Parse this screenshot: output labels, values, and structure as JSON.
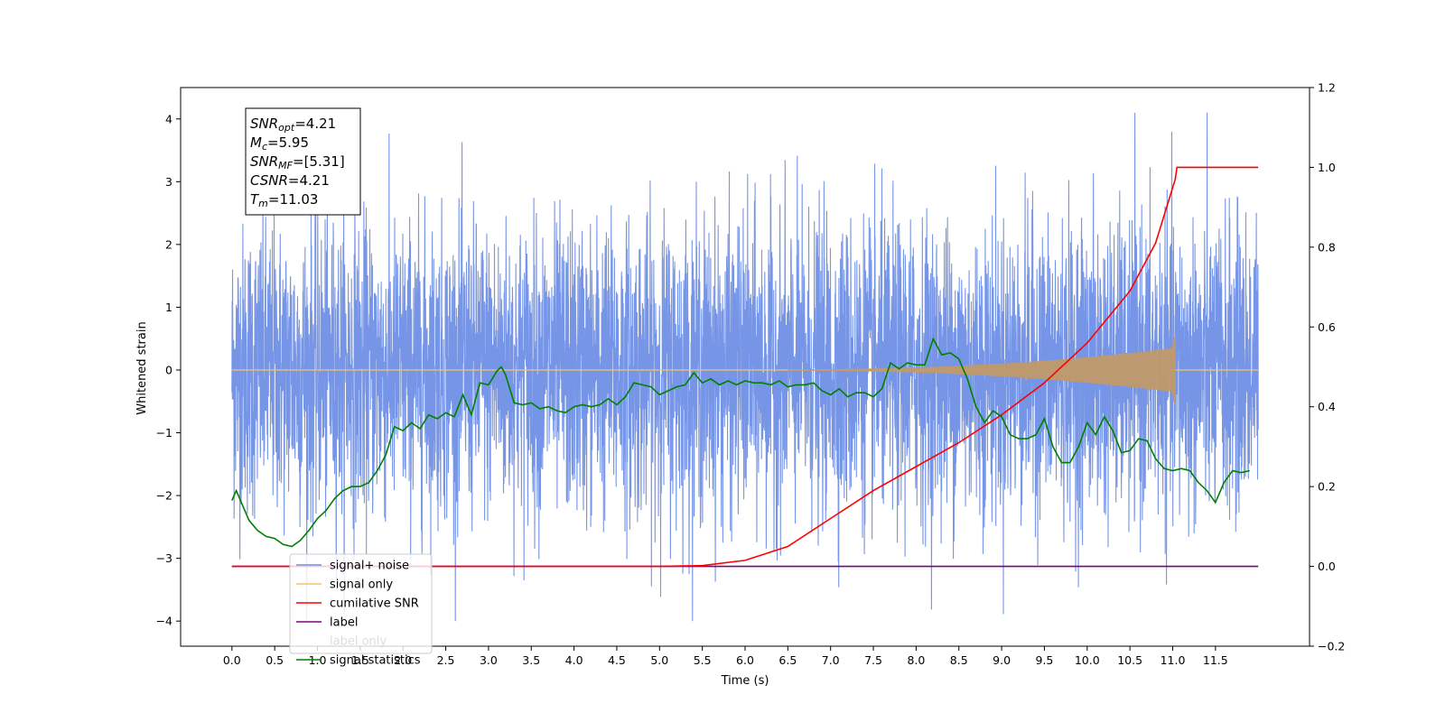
{
  "chart_data": {
    "type": "line",
    "xlabel": "Time (s)",
    "ylabel": "Whitened strain",
    "x_ticks": [
      "0.0",
      "0.5",
      "1.0",
      "1.5",
      "2.0",
      "2.5",
      "3.0",
      "3.5",
      "4.0",
      "4.5",
      "5.0",
      "5.5",
      "6.0",
      "6.5",
      "7.0",
      "7.5",
      "8.0",
      "8.5",
      "9.0",
      "9.5",
      "10.0",
      "10.5",
      "11.0",
      "11.5"
    ],
    "y_left_ticks": [
      "4",
      "3",
      "2",
      "1",
      "0",
      "−1",
      "−2",
      "−3",
      "−4"
    ],
    "y_right_ticks": [
      "1.2",
      "1.0",
      "0.8",
      "0.6",
      "0.4",
      "0.2",
      "0.0",
      "−0.2"
    ],
    "xlim": [
      -0.6,
      12.6
    ],
    "ylim_left": [
      -4.4,
      4.5
    ],
    "ylim_right": [
      -0.2,
      1.2
    ],
    "grid": false,
    "legend_position": "lower-left",
    "annotation": {
      "lines": [
        {
          "label": "SNR",
          "sub": "opt",
          "value": "=4.21"
        },
        {
          "label": "M",
          "sub": "c",
          "value": "=5.95"
        },
        {
          "label": "SNR",
          "sub": "MF",
          "value": "=[5.31]"
        },
        {
          "label": "CSNR",
          "sub": "",
          "value": "=4.21"
        },
        {
          "label": "T",
          "sub": "m",
          "value": "=11.03"
        }
      ]
    },
    "series": [
      {
        "name": "signal+ noise",
        "color": "#6f8fe6",
        "axis": "left",
        "description_stats": {
          "x_start": 0.0,
          "x_end": 12.0,
          "typical_range": [
            -2.4,
            2.4
          ],
          "max": 4.1,
          "min": -4.0
        }
      },
      {
        "name": "signal only",
        "color": "#f5c26b",
        "axis": "left",
        "chirp": {
          "start": 6.5,
          "merger": 11.03,
          "peak_amplitude": 0.55,
          "end_value": 0.0
        }
      },
      {
        "name": "cumilative SNR",
        "color": "#ff0000",
        "axis": "right",
        "x": [
          0.0,
          5.0,
          5.5,
          6.0,
          6.5,
          7.0,
          7.5,
          8.0,
          8.5,
          9.0,
          9.5,
          10.0,
          10.5,
          10.8,
          11.03,
          11.05,
          12.0
        ],
        "y": [
          0.0,
          0.0,
          0.002,
          0.015,
          0.05,
          0.12,
          0.19,
          0.25,
          0.31,
          0.38,
          0.46,
          0.56,
          0.69,
          0.81,
          0.97,
          1.0,
          1.0
        ]
      },
      {
        "name": "label",
        "color": "#800080",
        "axis": "right",
        "x": [
          0.0,
          12.0
        ],
        "y": [
          0.0,
          0.0
        ]
      },
      {
        "name": "label only",
        "color": "#ffffff",
        "axis": "right",
        "hidden": true
      },
      {
        "name": "signal statistics",
        "color": "#008000",
        "axis": "right",
        "x": [
          0.0,
          0.05,
          0.1,
          0.2,
          0.3,
          0.4,
          0.5,
          0.6,
          0.7,
          0.8,
          0.9,
          1.0,
          1.1,
          1.2,
          1.3,
          1.4,
          1.5,
          1.6,
          1.7,
          1.8,
          1.9,
          2.0,
          2.1,
          2.2,
          2.3,
          2.4,
          2.5,
          2.6,
          2.7,
          2.8,
          2.9,
          3.0,
          3.1,
          3.15,
          3.2,
          3.3,
          3.4,
          3.5,
          3.6,
          3.7,
          3.8,
          3.9,
          4.0,
          4.1,
          4.2,
          4.3,
          4.4,
          4.5,
          4.6,
          4.7,
          4.8,
          4.9,
          5.0,
          5.1,
          5.2,
          5.3,
          5.4,
          5.5,
          5.6,
          5.7,
          5.8,
          5.9,
          6.0,
          6.1,
          6.2,
          6.3,
          6.4,
          6.5,
          6.6,
          6.7,
          6.8,
          6.9,
          7.0,
          7.1,
          7.2,
          7.3,
          7.4,
          7.5,
          7.6,
          7.7,
          7.8,
          7.9,
          8.0,
          8.1,
          8.2,
          8.3,
          8.4,
          8.5,
          8.6,
          8.7,
          8.8,
          8.9,
          9.0,
          9.1,
          9.2,
          9.3,
          9.4,
          9.5,
          9.6,
          9.7,
          9.8,
          9.9,
          10.0,
          10.1,
          10.2,
          10.3,
          10.4,
          10.5,
          10.6,
          10.7,
          10.8,
          10.9,
          11.0,
          11.1,
          11.2,
          11.3,
          11.4,
          11.5,
          11.6,
          11.7,
          11.8,
          11.9
        ],
        "y": [
          0.165,
          0.19,
          0.165,
          0.115,
          0.09,
          0.075,
          0.07,
          0.055,
          0.05,
          0.065,
          0.09,
          0.12,
          0.14,
          0.17,
          0.19,
          0.2,
          0.2,
          0.21,
          0.24,
          0.28,
          0.35,
          0.34,
          0.36,
          0.345,
          0.38,
          0.37,
          0.385,
          0.375,
          0.43,
          0.38,
          0.46,
          0.455,
          0.49,
          0.5,
          0.48,
          0.41,
          0.405,
          0.41,
          0.395,
          0.4,
          0.39,
          0.385,
          0.4,
          0.405,
          0.4,
          0.405,
          0.42,
          0.405,
          0.425,
          0.46,
          0.455,
          0.45,
          0.43,
          0.44,
          0.45,
          0.455,
          0.485,
          0.46,
          0.47,
          0.455,
          0.465,
          0.455,
          0.465,
          0.46,
          0.46,
          0.455,
          0.465,
          0.45,
          0.455,
          0.455,
          0.46,
          0.44,
          0.43,
          0.445,
          0.425,
          0.435,
          0.435,
          0.425,
          0.445,
          0.51,
          0.495,
          0.51,
          0.505,
          0.505,
          0.57,
          0.53,
          0.535,
          0.52,
          0.47,
          0.4,
          0.36,
          0.39,
          0.375,
          0.33,
          0.32,
          0.32,
          0.33,
          0.37,
          0.3,
          0.26,
          0.26,
          0.3,
          0.36,
          0.33,
          0.375,
          0.34,
          0.285,
          0.29,
          0.32,
          0.315,
          0.27,
          0.245,
          0.24,
          0.245,
          0.24,
          0.21,
          0.19,
          0.16,
          0.21,
          0.24,
          0.235,
          0.24
        ]
      }
    ]
  }
}
